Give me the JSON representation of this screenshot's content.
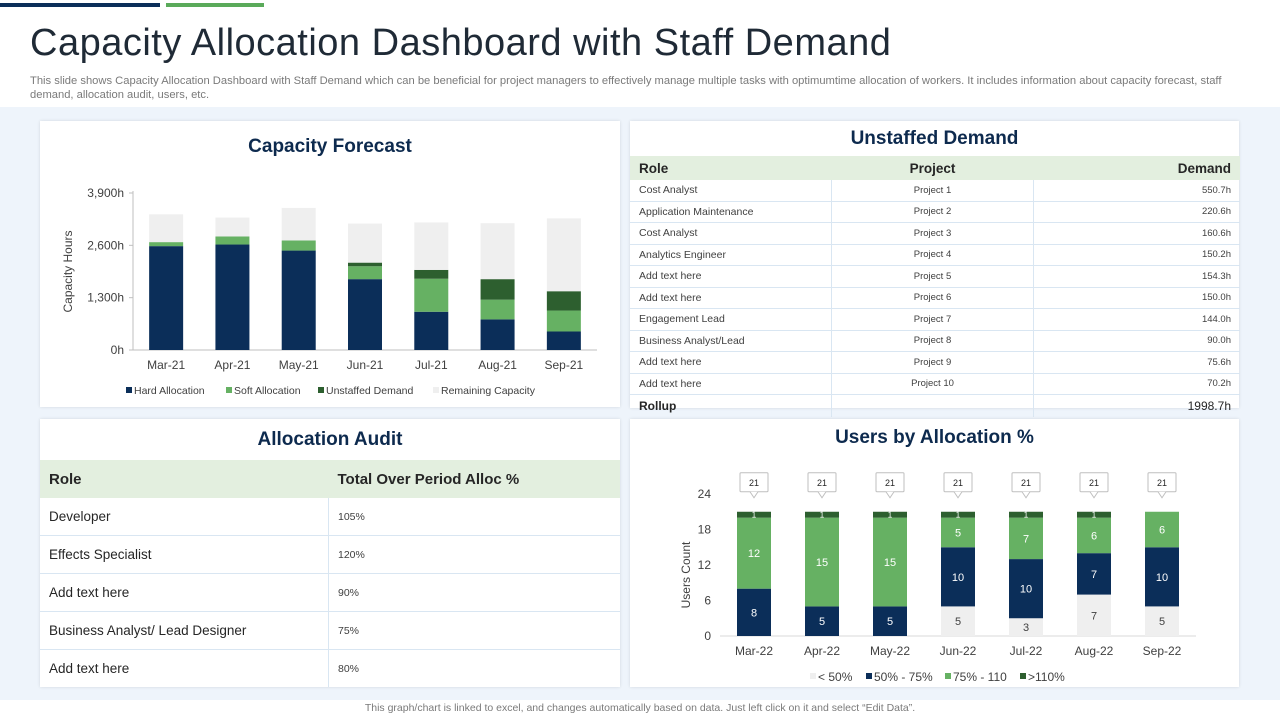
{
  "header": {
    "title": "Capacity Allocation Dashboard with Staff Demand",
    "subtitle": "This slide shows Capacity Allocation Dashboard with Staff Demand which can be beneficial for project managers to effectively manage multiple tasks with optimumtime allocation of workers. It includes information about capacity forecast, staff demand, allocation audit, users, etc."
  },
  "footer": "This graph/chart is linked to excel, and changes automatically based on data. Just left click on it and select “Edit Data”.",
  "colors": {
    "dark_navy": "#0b2e59",
    "green": "#66b163",
    "dark_green": "#2d5f2f",
    "light_gray": "#efefef"
  },
  "capacity_forecast": {
    "title": "Capacity Forecast"
  },
  "unstaffed_demand": {
    "title": "Unstaffed Demand",
    "headers": [
      "Role",
      "Project",
      "Demand"
    ],
    "rows": [
      {
        "role": "Cost Analyst",
        "project": "Project 1",
        "demand": "550.7h"
      },
      {
        "role": "Application Maintenance",
        "project": "Project 2",
        "demand": "220.6h"
      },
      {
        "role": "Cost Analyst",
        "project": "Project 3",
        "demand": "160.6h"
      },
      {
        "role": "Analytics Engineer",
        "project": "Project 4",
        "demand": "150.2h"
      },
      {
        "role": "Add text here",
        "project": "Project 5",
        "demand": "154.3h"
      },
      {
        "role": "Add text here",
        "project": "Project 6",
        "demand": "150.0h"
      },
      {
        "role": "Engagement Lead",
        "project": "Project 7",
        "demand": "144.0h"
      },
      {
        "role": "Business Analyst/Lead",
        "project": "Project 8",
        "demand": "90.0h"
      },
      {
        "role": "Add text here",
        "project": "Project 9",
        "demand": "75.6h"
      },
      {
        "role": "Add text here",
        "project": "Project 10",
        "demand": "70.2h"
      }
    ],
    "rollup_label": "Rollup",
    "rollup_value": "1998.7h"
  },
  "allocation_audit": {
    "title": "Allocation Audit",
    "headers": [
      "Role",
      "Total Over Period Alloc %"
    ],
    "rows": [
      {
        "role": "Developer",
        "value": "105%"
      },
      {
        "role": "Effects Specialist",
        "value": "120%"
      },
      {
        "role": "Add text here",
        "value": "90%"
      },
      {
        "role": "Business Analyst/ Lead Designer",
        "value": "75%"
      },
      {
        "role": "Add text here",
        "value": "80%"
      }
    ]
  },
  "users_allocation": {
    "title": "Users by Allocation %"
  },
  "chart_data": [
    {
      "type": "bar",
      "stacked": true,
      "title": "Capacity Forecast",
      "xlabel": "",
      "ylabel": "Capacity Hours",
      "categories": [
        "Mar-21",
        "Apr-21",
        "May-21",
        "Jun-21",
        "Jul-21",
        "Aug-21",
        "Sep-21"
      ],
      "y_ticks": [
        "0h",
        "1,300h",
        "2,600h",
        "3,900h"
      ],
      "ylim": [
        0,
        3900
      ],
      "grid": false,
      "legend_position": "bottom",
      "series": [
        {
          "name": "Hard Allocation",
          "color": "#0b2e59",
          "values": [
            2580,
            2620,
            2470,
            1760,
            950,
            760,
            460
          ]
        },
        {
          "name": "Soft Allocation",
          "color": "#66b163",
          "values": [
            100,
            200,
            250,
            320,
            820,
            490,
            520
          ]
        },
        {
          "name": "Unstaffed Demand",
          "color": "#2d5f2f",
          "values": [
            0,
            0,
            0,
            90,
            220,
            510,
            480
          ]
        },
        {
          "name": "Remaining Capacity",
          "color": "#efefef",
          "values": [
            690,
            470,
            810,
            970,
            1180,
            1390,
            1810
          ]
        }
      ]
    },
    {
      "type": "bar",
      "stacked": true,
      "title": "Users by Allocation %",
      "xlabel": "",
      "ylabel": "Users Count",
      "categories": [
        "Mar-22",
        "Apr-22",
        "May-22",
        "Jun-22",
        "Jul-22",
        "Aug-22",
        "Sep-22"
      ],
      "y_ticks": [
        "0",
        "6",
        "12",
        "18",
        "24"
      ],
      "ylim": [
        0,
        24
      ],
      "grid": false,
      "legend_position": "bottom",
      "totals": [
        21,
        21,
        21,
        21,
        21,
        21,
        21
      ],
      "series": [
        {
          "name": "< 50%",
          "color": "#efefef",
          "values": [
            0,
            0,
            0,
            5,
            3,
            7,
            5
          ],
          "labels": [
            "",
            "",
            "",
            "5",
            "3",
            "7",
            "5"
          ]
        },
        {
          "name": "50% - 75%",
          "color": "#0b2e59",
          "values": [
            8,
            5,
            5,
            10,
            10,
            7,
            10
          ],
          "labels": [
            "8",
            "5",
            "5",
            "10",
            "10",
            "7",
            "10"
          ]
        },
        {
          "name": "75% - 110",
          "color": "#66b163",
          "values": [
            12,
            15,
            15,
            5,
            7,
            6,
            6
          ],
          "labels": [
            "12",
            "15",
            "15",
            "5",
            "7",
            "6",
            "6"
          ]
        },
        {
          "name": ">110%",
          "color": "#2d5f2f",
          "values": [
            1,
            1,
            1,
            1,
            1,
            1,
            0
          ],
          "labels": [
            "1",
            "1",
            "1",
            "1",
            "1",
            "1",
            ""
          ]
        }
      ]
    }
  ]
}
